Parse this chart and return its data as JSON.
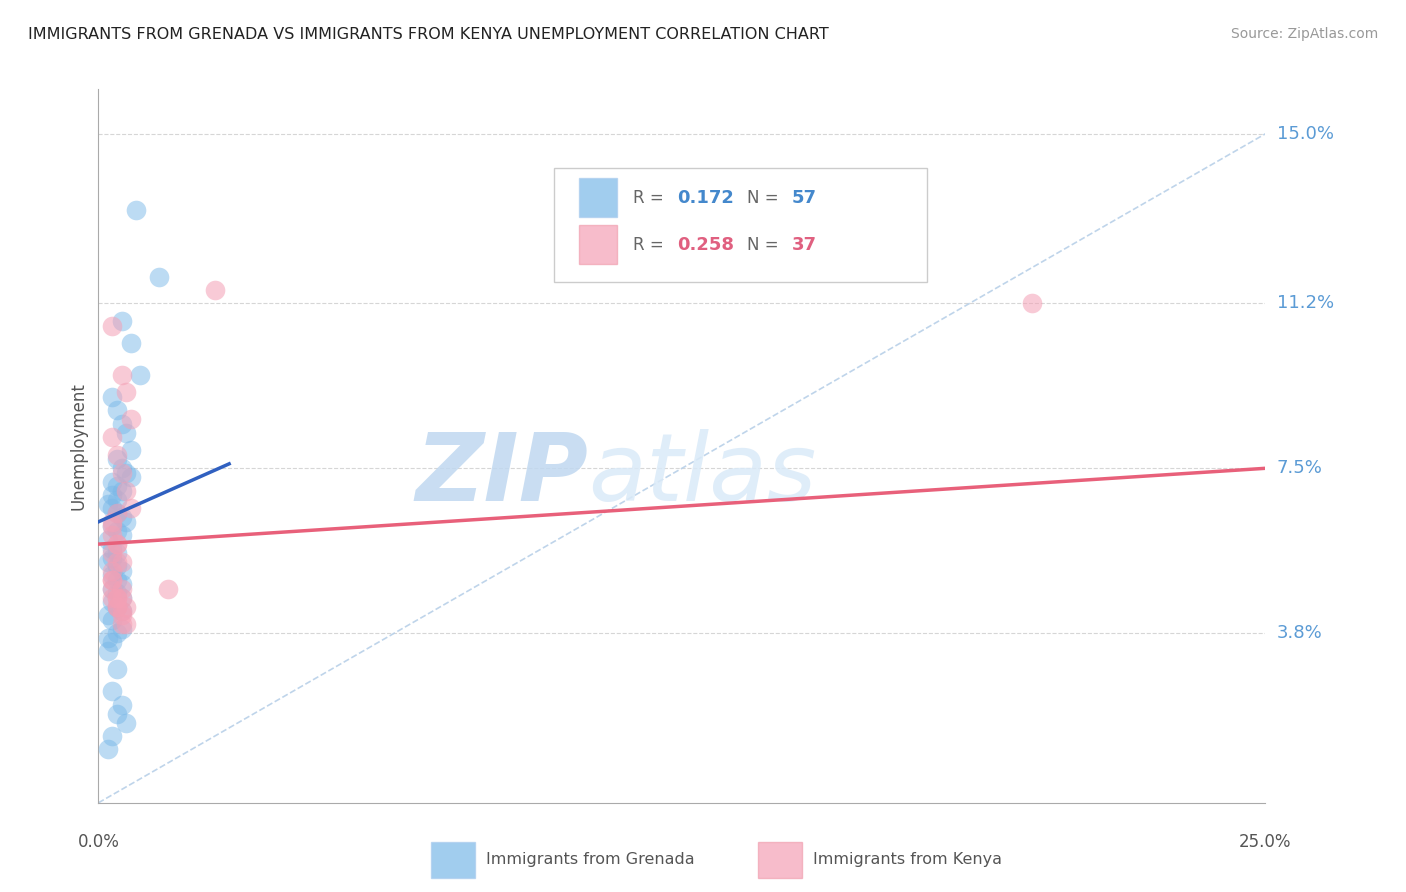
{
  "title": "IMMIGRANTS FROM GRENADA VS IMMIGRANTS FROM KENYA UNEMPLOYMENT CORRELATION CHART",
  "source": "Source: ZipAtlas.com",
  "ylabel": "Unemployment",
  "ytick_labels": [
    "15.0%",
    "11.2%",
    "7.5%",
    "3.8%"
  ],
  "ytick_values": [
    0.15,
    0.112,
    0.075,
    0.038
  ],
  "xmin": 0.0,
  "xmax": 0.25,
  "ymin": 0.0,
  "ymax": 0.16,
  "color_blue": "#7ab8e8",
  "color_pink": "#f4a0b5",
  "line_blue": "#3060c0",
  "line_pink": "#e8607a",
  "line_dashed": "#b8d0e8",
  "watermark_zip_color": "#c8daf0",
  "watermark_atlas_color": "#d8e8f8",
  "grenada_x": [
    0.008,
    0.013,
    0.005,
    0.007,
    0.009,
    0.003,
    0.004,
    0.005,
    0.006,
    0.007,
    0.004,
    0.005,
    0.006,
    0.007,
    0.003,
    0.004,
    0.005,
    0.003,
    0.004,
    0.002,
    0.003,
    0.004,
    0.005,
    0.006,
    0.003,
    0.004,
    0.005,
    0.002,
    0.003,
    0.004,
    0.003,
    0.002,
    0.004,
    0.005,
    0.003,
    0.004,
    0.005,
    0.003,
    0.004,
    0.005,
    0.003,
    0.004,
    0.005,
    0.002,
    0.003,
    0.005,
    0.004,
    0.002,
    0.003,
    0.002,
    0.004,
    0.003,
    0.005,
    0.004,
    0.006,
    0.003,
    0.002
  ],
  "grenada_y": [
    0.133,
    0.118,
    0.108,
    0.103,
    0.096,
    0.091,
    0.088,
    0.085,
    0.083,
    0.079,
    0.077,
    0.075,
    0.074,
    0.073,
    0.072,
    0.071,
    0.07,
    0.069,
    0.068,
    0.067,
    0.066,
    0.065,
    0.064,
    0.063,
    0.062,
    0.061,
    0.06,
    0.059,
    0.057,
    0.056,
    0.055,
    0.054,
    0.053,
    0.052,
    0.051,
    0.05,
    0.049,
    0.048,
    0.047,
    0.046,
    0.045,
    0.044,
    0.043,
    0.042,
    0.041,
    0.039,
    0.038,
    0.037,
    0.036,
    0.034,
    0.03,
    0.025,
    0.022,
    0.02,
    0.018,
    0.015,
    0.012
  ],
  "kenya_x": [
    0.003,
    0.005,
    0.006,
    0.007,
    0.003,
    0.004,
    0.005,
    0.006,
    0.007,
    0.003,
    0.004,
    0.005,
    0.025,
    0.003,
    0.004,
    0.005,
    0.003,
    0.004,
    0.005,
    0.003,
    0.004,
    0.005,
    0.006,
    0.003,
    0.004,
    0.003,
    0.004,
    0.005,
    0.003,
    0.004,
    0.003,
    0.015,
    0.005,
    0.006,
    0.003,
    0.004,
    0.2
  ],
  "kenya_y": [
    0.107,
    0.096,
    0.092,
    0.086,
    0.082,
    0.078,
    0.074,
    0.07,
    0.066,
    0.062,
    0.058,
    0.054,
    0.115,
    0.05,
    0.046,
    0.043,
    0.048,
    0.044,
    0.04,
    0.046,
    0.044,
    0.042,
    0.04,
    0.05,
    0.046,
    0.052,
    0.054,
    0.048,
    0.056,
    0.058,
    0.06,
    0.048,
    0.046,
    0.044,
    0.063,
    0.065,
    0.112
  ],
  "grenada_trend": [
    0.0,
    0.028,
    0.063,
    0.076
  ],
  "kenya_trend_x": [
    0.0,
    0.25
  ],
  "kenya_trend_y": [
    0.058,
    0.075
  ],
  "ref_line_x": [
    0.0,
    0.25
  ],
  "ref_line_y": [
    0.0,
    0.15
  ]
}
